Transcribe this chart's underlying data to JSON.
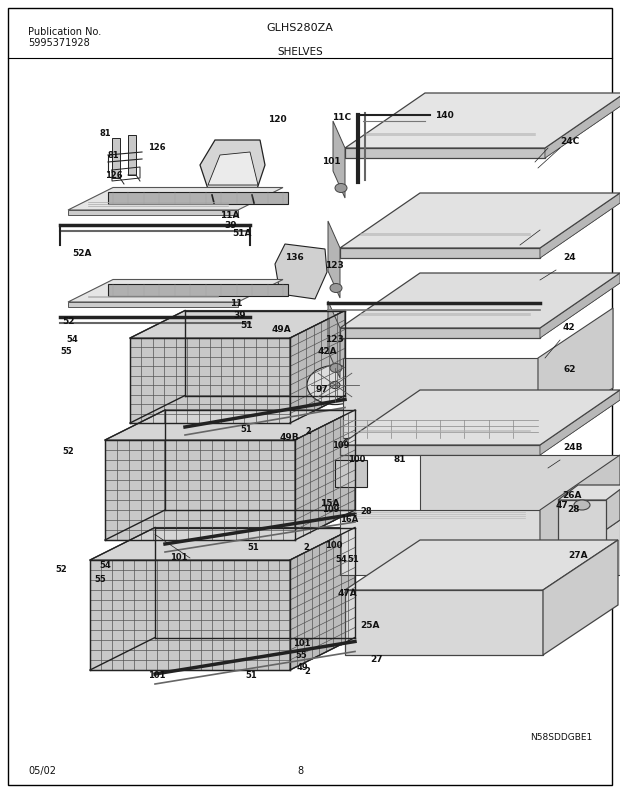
{
  "title": "GLHS280ZA",
  "subtitle": "SHELVES",
  "pub_label": "Publication No.",
  "pub_number": "5995371928",
  "diagram_id": "N58SDDGBE1",
  "page_number": "8",
  "date_code": "05/02",
  "bg_color": "#ffffff",
  "border_color": "#000000",
  "text_color": "#1a1a1a",
  "gray_light": "#d8d8d8",
  "gray_med": "#aaaaaa",
  "gray_dark": "#555555",
  "line_color": "#222222"
}
